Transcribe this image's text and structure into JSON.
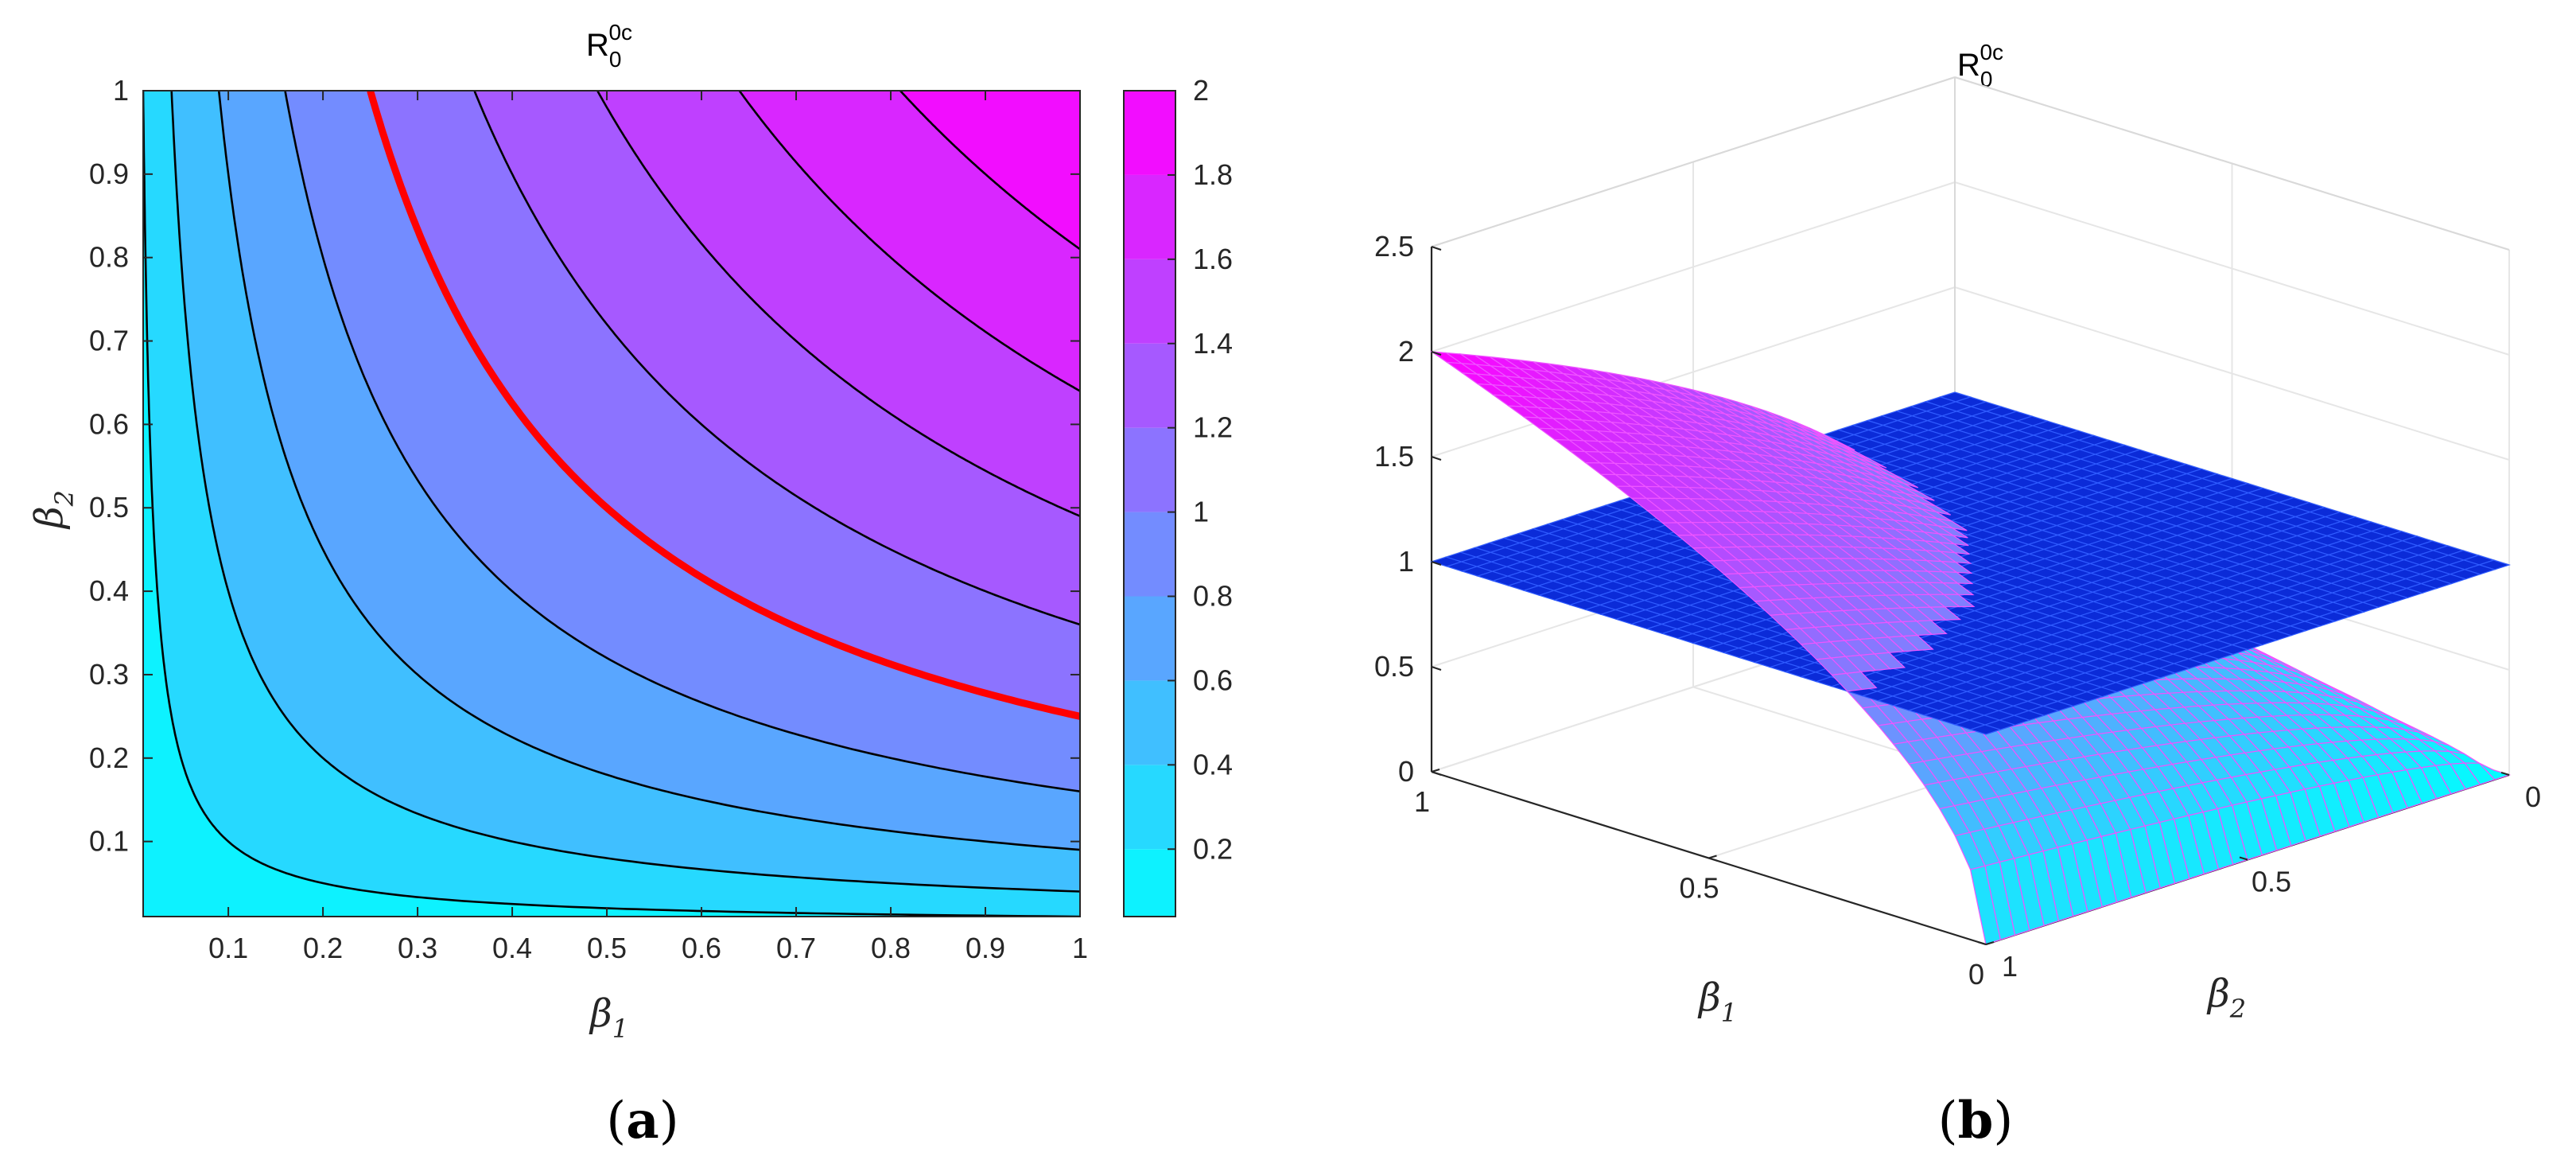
{
  "chart_data": [
    {
      "panel": "(a)",
      "type": "heatmap",
      "subtype": "filled-contour",
      "title_base": "R",
      "title_sub": "0",
      "title_sup": "0c",
      "xlabel_sym": "β",
      "xlabel_sub": "1",
      "ylabel_sym": "β",
      "ylabel_sub": "2",
      "xlim": [
        0.01,
        1
      ],
      "ylim": [
        0.01,
        1
      ],
      "xticks": [
        "0.1",
        "0.2",
        "0.3",
        "0.4",
        "0.5",
        "0.6",
        "0.7",
        "0.8",
        "0.9",
        "1"
      ],
      "yticks": [
        "0.1",
        "0.2",
        "0.3",
        "0.4",
        "0.5",
        "0.6",
        "0.7",
        "0.8",
        "0.9",
        "1"
      ],
      "function": "R = 2*sqrt(beta1*beta2)",
      "contour_levels": [
        0.2,
        0.4,
        0.6,
        0.8,
        1.0,
        1.2,
        1.4,
        1.6,
        1.8
      ],
      "highlighted_level": 1.0,
      "highlight_color": "#ff0000",
      "contour_color": "#000000",
      "colorbar": {
        "range": [
          0.04,
          2
        ],
        "ticks": [
          "0.2",
          "0.4",
          "0.6",
          "0.8",
          "1",
          "1.2",
          "1.4",
          "1.6",
          "1.8",
          "2"
        ],
        "colormap": "cool",
        "low_color": "#00ffff",
        "high_color": "#ff00ff"
      }
    },
    {
      "panel": "(b)",
      "type": "surface-3d",
      "title_base": "R",
      "title_sub": "0",
      "title_sup": "0c",
      "xlabel_sym": "β",
      "xlabel_sub": "1",
      "ylabel_sym": "β",
      "ylabel_sub": "2",
      "zlim": [
        0,
        2.5
      ],
      "zticks": [
        "0",
        "0.5",
        "1",
        "1.5",
        "2",
        "2.5"
      ],
      "beta1_ticks": [
        "1",
        "0.5",
        "0"
      ],
      "beta2_ticks": [
        "0",
        "0.5",
        "1"
      ],
      "surfaces": [
        {
          "name": "R_0^{0c}",
          "function": "R = 2*sqrt(beta1*beta2)",
          "colormap": "cool",
          "edge_color": "#ff33ff"
        },
        {
          "name": "plane R = 1",
          "constant": 1,
          "color": "#0022dd",
          "edge_color": "#3366ff"
        }
      ]
    }
  ],
  "captions": {
    "a": "a",
    "b": "b"
  }
}
